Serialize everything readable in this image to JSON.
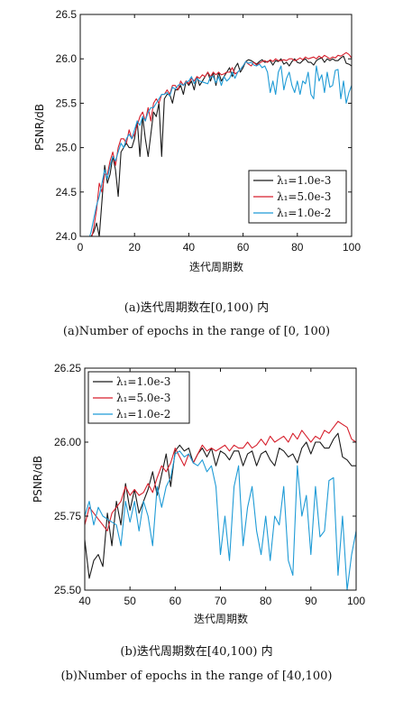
{
  "chart_data": [
    {
      "type": "line",
      "xlabel": "迭代周期数",
      "ylabel": "PSNR/dB",
      "xlim": [
        0,
        100
      ],
      "ylim": [
        24.0,
        26.5
      ],
      "xticks": [
        "0",
        "20",
        "40",
        "60",
        "80",
        "100"
      ],
      "yticks": [
        "24.0",
        "24.5",
        "25.0",
        "25.5",
        "26.0",
        "26.5"
      ],
      "legend_position": "bottom-right",
      "caption_cn": "(a)迭代周期数在[0,100) 内",
      "caption_en": "(a)Number of epochs in the range of [0, 100)",
      "series": [
        {
          "name": "λ₁=1.0e-3",
          "color": "#1a1a1a",
          "x": [
            2,
            3,
            4,
            5,
            6,
            7,
            8,
            9,
            10,
            11,
            12,
            13,
            14,
            15,
            16,
            17,
            18,
            19,
            20,
            21,
            22,
            23,
            24,
            25,
            26,
            27,
            28,
            29,
            30,
            31,
            32,
            33,
            34,
            35,
            36,
            37,
            38,
            39,
            40,
            41,
            42,
            43,
            44,
            45,
            46,
            47,
            48,
            49,
            50,
            51,
            52,
            53,
            54,
            55,
            56,
            57,
            58,
            59,
            60,
            61,
            62,
            63,
            64,
            65,
            66,
            67,
            68,
            69,
            70,
            71,
            72,
            73,
            74,
            75,
            76,
            77,
            78,
            79,
            80,
            81,
            82,
            83,
            84,
            85,
            86,
            87,
            88,
            89,
            90,
            91,
            92,
            93,
            94,
            95,
            96,
            97,
            98,
            99,
            100
          ],
          "y": [
            23.75,
            23.9,
            24.0,
            24.05,
            24.15,
            24.0,
            24.4,
            24.8,
            24.6,
            24.7,
            24.9,
            24.75,
            24.45,
            24.95,
            25.0,
            25.05,
            25.0,
            25.0,
            25.1,
            25.3,
            24.9,
            25.35,
            25.1,
            24.9,
            25.15,
            25.4,
            25.35,
            25.5,
            24.9,
            25.55,
            25.6,
            25.6,
            25.5,
            25.65,
            25.65,
            25.7,
            25.6,
            25.75,
            25.7,
            25.75,
            25.65,
            25.8,
            25.7,
            25.75,
            25.8,
            25.85,
            25.75,
            25.85,
            25.7,
            25.85,
            25.75,
            25.8,
            25.85,
            25.9,
            25.8,
            25.9,
            25.95,
            25.85,
            25.9,
            25.97,
            25.99,
            25.98,
            25.96,
            25.94,
            25.97,
            25.99,
            25.96,
            25.97,
            25.98,
            25.93,
            25.98,
            25.97,
            26.0,
            25.94,
            25.96,
            25.92,
            25.97,
            26.0,
            25.96,
            25.95,
            25.98,
            26.0,
            25.96,
            25.96,
            25.93,
            25.98,
            26.0,
            26.01,
            25.96,
            26.0,
            25.98,
            26.0,
            25.98,
            25.98,
            26.01,
            26.03,
            25.95,
            25.94,
            25.92
          ]
        },
        {
          "name": "λ₁=5.0e-3",
          "color": "#d61f2c",
          "x": [
            2,
            3,
            4,
            5,
            6,
            7,
            8,
            9,
            10,
            11,
            12,
            13,
            14,
            15,
            16,
            17,
            18,
            19,
            20,
            21,
            22,
            23,
            24,
            25,
            26,
            27,
            28,
            29,
            30,
            31,
            32,
            33,
            34,
            35,
            36,
            37,
            38,
            39,
            40,
            41,
            42,
            43,
            44,
            45,
            46,
            47,
            48,
            49,
            50,
            51,
            52,
            53,
            54,
            55,
            56,
            57,
            58,
            59,
            60,
            61,
            62,
            63,
            64,
            65,
            66,
            67,
            68,
            69,
            70,
            71,
            72,
            73,
            74,
            75,
            76,
            77,
            78,
            79,
            80,
            81,
            82,
            83,
            84,
            85,
            86,
            87,
            88,
            89,
            90,
            91,
            92,
            93,
            94,
            95,
            96,
            97,
            98,
            99,
            100
          ],
          "y": [
            23.7,
            23.85,
            23.95,
            24.1,
            24.3,
            24.6,
            24.5,
            24.7,
            24.7,
            24.85,
            24.95,
            24.8,
            25.0,
            25.1,
            25.1,
            25.05,
            25.2,
            25.1,
            25.15,
            25.25,
            25.35,
            25.4,
            25.3,
            25.45,
            25.3,
            25.5,
            25.55,
            25.5,
            25.6,
            25.6,
            25.65,
            25.6,
            25.7,
            25.7,
            25.65,
            25.75,
            25.7,
            25.75,
            25.72,
            25.78,
            25.75,
            25.8,
            25.78,
            25.82,
            25.8,
            25.85,
            25.8,
            25.85,
            25.82,
            25.85,
            25.82,
            25.83,
            25.85,
            25.85,
            25.9,
            25.83,
            25.85,
            25.88,
            25.92,
            25.97,
            25.94,
            25.92,
            25.96,
            25.93,
            25.95,
            25.97,
            25.98,
            25.96,
            25.99,
            25.97,
            26.0,
            25.98,
            25.98,
            25.99,
            25.98,
            26.0,
            26.0,
            25.98,
            25.99,
            26.01,
            25.99,
            26.02,
            26.0,
            26.01,
            26.02,
            26.0,
            26.03,
            26.01,
            26.04,
            26.02,
            26.0,
            26.02,
            26.01,
            26.04,
            26.03,
            26.05,
            26.07,
            26.05,
            26.01
          ]
        },
        {
          "name": "λ₁=1.0e-2",
          "color": "#1f9bd6",
          "x": [
            2,
            3,
            4,
            5,
            6,
            7,
            8,
            9,
            10,
            11,
            12,
            13,
            14,
            15,
            16,
            17,
            18,
            19,
            20,
            21,
            22,
            23,
            24,
            25,
            26,
            27,
            28,
            29,
            30,
            31,
            32,
            33,
            34,
            35,
            36,
            37,
            38,
            39,
            40,
            41,
            42,
            43,
            44,
            45,
            46,
            47,
            48,
            49,
            50,
            51,
            52,
            53,
            54,
            55,
            56,
            57,
            58,
            59,
            60,
            61,
            62,
            63,
            64,
            65,
            66,
            67,
            68,
            69,
            70,
            71,
            72,
            73,
            74,
            75,
            76,
            77,
            78,
            79,
            80,
            81,
            82,
            83,
            84,
            85,
            86,
            87,
            88,
            89,
            90,
            91,
            92,
            93,
            94,
            95,
            96,
            97,
            98,
            99,
            100
          ],
          "y": [
            23.8,
            23.95,
            24.05,
            24.2,
            24.35,
            24.45,
            24.6,
            24.75,
            24.65,
            24.8,
            24.9,
            24.85,
            24.95,
            25.05,
            25.0,
            25.1,
            25.15,
            25.1,
            25.2,
            25.3,
            25.25,
            25.35,
            25.3,
            25.4,
            25.45,
            25.45,
            25.5,
            25.55,
            25.6,
            25.6,
            25.62,
            25.58,
            25.68,
            25.66,
            25.7,
            25.72,
            25.7,
            25.74,
            25.75,
            25.8,
            25.72,
            25.78,
            25.75,
            25.74,
            25.73,
            25.72,
            25.8,
            25.8,
            25.73,
            25.8,
            25.7,
            25.8,
            25.75,
            25.78,
            25.85,
            25.78,
            25.85,
            25.88,
            25.92,
            25.97,
            25.95,
            25.96,
            25.93,
            25.92,
            25.94,
            25.9,
            25.92,
            25.85,
            25.62,
            25.75,
            25.6,
            25.85,
            25.92,
            25.65,
            25.78,
            25.85,
            25.7,
            25.62,
            25.75,
            25.6,
            25.75,
            25.72,
            25.85,
            25.6,
            25.55,
            25.92,
            25.75,
            25.82,
            25.62,
            25.85,
            25.68,
            25.7,
            25.87,
            25.88,
            25.55,
            25.75,
            25.5,
            25.62,
            25.7
          ]
        }
      ]
    },
    {
      "type": "line",
      "xlabel": "迭代周期数",
      "ylabel": "PSNR/dB",
      "xlim": [
        40,
        100
      ],
      "ylim": [
        25.5,
        26.25
      ],
      "xticks": [
        "40",
        "50",
        "60",
        "70",
        "80",
        "90",
        "100"
      ],
      "yticks": [
        "25.50",
        "25.75",
        "26.00",
        "26.25"
      ],
      "legend_position": "top-left",
      "caption_cn": "(b)迭代周期数在[40,100) 内",
      "caption_en": "(b)Number of epochs in the range of [40,100)",
      "series": [
        {
          "name": "λ₁=1.0e-3",
          "color": "#1a1a1a",
          "x": [
            40,
            41,
            42,
            43,
            44,
            45,
            46,
            47,
            48,
            49,
            50,
            51,
            52,
            53,
            54,
            55,
            56,
            57,
            58,
            59,
            60,
            61,
            62,
            63,
            64,
            65,
            66,
            67,
            68,
            69,
            70,
            71,
            72,
            73,
            74,
            75,
            76,
            77,
            78,
            79,
            80,
            81,
            82,
            83,
            84,
            85,
            86,
            87,
            88,
            89,
            90,
            91,
            92,
            93,
            94,
            95,
            96,
            97,
            98,
            99,
            100
          ],
          "y": [
            25.67,
            25.54,
            25.6,
            25.62,
            25.58,
            25.76,
            25.65,
            25.8,
            25.72,
            25.86,
            25.77,
            25.84,
            25.76,
            25.8,
            25.84,
            25.9,
            25.82,
            25.89,
            25.96,
            25.85,
            25.97,
            25.99,
            25.97,
            25.98,
            25.93,
            25.96,
            25.98,
            25.95,
            25.98,
            25.92,
            25.97,
            25.96,
            25.94,
            25.97,
            25.97,
            25.92,
            25.96,
            25.97,
            25.92,
            25.96,
            25.97,
            25.94,
            25.92,
            25.98,
            25.97,
            25.95,
            25.96,
            25.93,
            25.98,
            26.0,
            25.96,
            26.0,
            26.0,
            25.98,
            25.98,
            26.01,
            26.03,
            25.95,
            25.94,
            25.92,
            25.92
          ]
        },
        {
          "name": "λ₁=5.0e-3",
          "color": "#d61f2c",
          "x": [
            40,
            41,
            42,
            43,
            44,
            45,
            46,
            47,
            48,
            49,
            50,
            51,
            52,
            53,
            54,
            55,
            56,
            57,
            58,
            59,
            60,
            61,
            62,
            63,
            64,
            65,
            66,
            67,
            68,
            69,
            70,
            71,
            72,
            73,
            74,
            75,
            76,
            77,
            78,
            79,
            80,
            81,
            82,
            83,
            84,
            85,
            86,
            87,
            88,
            89,
            90,
            91,
            92,
            93,
            94,
            95,
            96,
            97,
            98,
            99,
            100
          ],
          "y": [
            25.72,
            25.78,
            25.76,
            25.74,
            25.72,
            25.7,
            25.76,
            25.78,
            25.8,
            25.85,
            25.82,
            25.84,
            25.82,
            25.83,
            25.86,
            25.83,
            25.88,
            25.92,
            25.9,
            25.93,
            25.98,
            25.95,
            25.92,
            25.96,
            25.93,
            25.96,
            25.99,
            25.97,
            25.98,
            25.97,
            25.98,
            25.99,
            25.97,
            25.99,
            25.98,
            25.98,
            26.0,
            25.98,
            25.99,
            26.01,
            25.99,
            26.02,
            26.0,
            26.01,
            26.02,
            26.0,
            26.03,
            26.01,
            26.04,
            26.02,
            26.0,
            26.02,
            26.01,
            26.04,
            26.03,
            26.05,
            26.07,
            26.06,
            26.05,
            26.01,
            26.0
          ]
        },
        {
          "name": "λ₁=1.0e-2",
          "color": "#1f9bd6",
          "x": [
            40,
            41,
            42,
            43,
            44,
            45,
            46,
            47,
            48,
            49,
            50,
            51,
            52,
            53,
            54,
            55,
            56,
            57,
            58,
            59,
            60,
            61,
            62,
            63,
            64,
            65,
            66,
            67,
            68,
            69,
            70,
            71,
            72,
            73,
            74,
            75,
            76,
            77,
            78,
            79,
            80,
            81,
            82,
            83,
            84,
            85,
            86,
            87,
            88,
            89,
            90,
            91,
            92,
            93,
            94,
            95,
            96,
            97,
            98,
            99,
            100
          ],
          "y": [
            25.75,
            25.8,
            25.72,
            25.78,
            25.75,
            25.74,
            25.73,
            25.72,
            25.65,
            25.8,
            25.73,
            25.8,
            25.7,
            25.8,
            25.75,
            25.65,
            25.85,
            25.78,
            25.85,
            25.88,
            25.96,
            25.97,
            25.95,
            25.96,
            25.93,
            25.92,
            25.94,
            25.9,
            25.92,
            25.85,
            25.62,
            25.75,
            25.6,
            25.85,
            25.92,
            25.65,
            25.78,
            25.85,
            25.7,
            25.62,
            25.75,
            25.6,
            25.75,
            25.72,
            25.85,
            25.6,
            25.55,
            25.92,
            25.75,
            25.82,
            25.62,
            25.85,
            25.68,
            25.7,
            25.87,
            25.88,
            25.55,
            25.75,
            25.5,
            25.62,
            25.7
          ]
        }
      ]
    }
  ]
}
